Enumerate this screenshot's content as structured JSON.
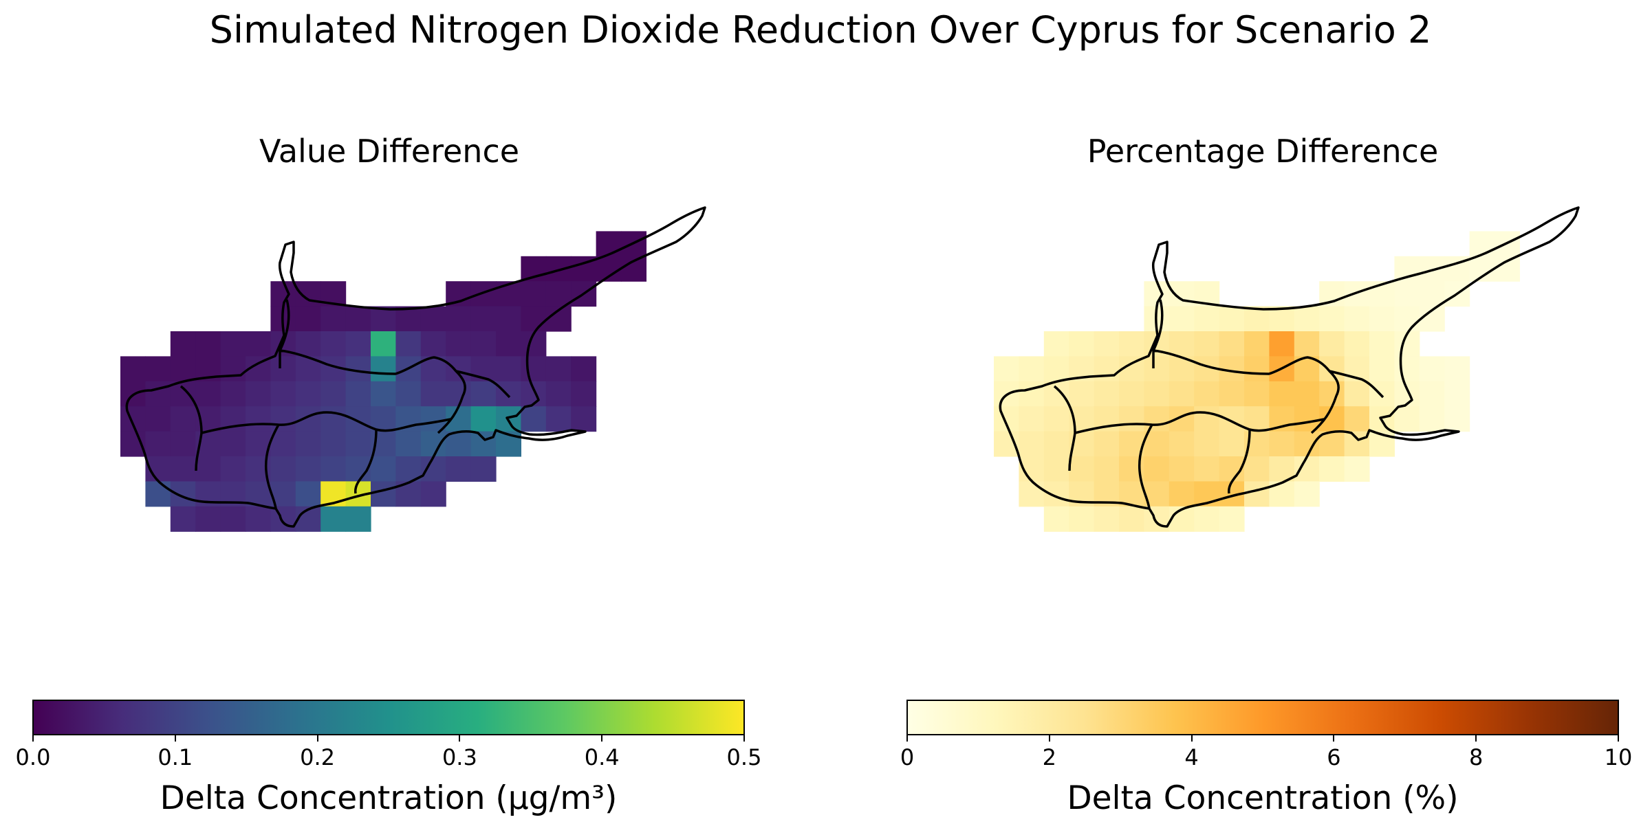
{
  "title": "Simulated Nitrogen Dioxide Reduction Over Cyprus for Scenario 2",
  "panels": [
    {
      "title": "Value Difference",
      "colormap": "viridis",
      "colorbar": {
        "label": "Delta Concentration (µg/m³)",
        "min": 0.0,
        "max": 0.5,
        "ticks": [
          "0.0",
          "0.1",
          "0.2",
          "0.3",
          "0.4",
          "0.5"
        ]
      },
      "stops": [
        "#440154",
        "#472d7b",
        "#3b528b",
        "#2c728e",
        "#21918c",
        "#28ae80",
        "#5ec962",
        "#addc30",
        "#fde725"
      ]
    },
    {
      "title": "Percentage Difference",
      "colormap": "YlOrBr",
      "colorbar": {
        "label": "Delta Concentration (%)",
        "min": 0,
        "max": 10,
        "ticks": [
          "0",
          "2",
          "4",
          "6",
          "8",
          "10"
        ]
      },
      "stops": [
        "#ffffe5",
        "#fff7bc",
        "#fee391",
        "#fec44f",
        "#fe9929",
        "#ec7014",
        "#cc4c02",
        "#993404",
        "#662506"
      ]
    }
  ],
  "grid_value": [
    [
      null,
      null,
      null,
      null,
      null,
      null,
      null,
      null,
      null,
      null,
      null,
      null,
      null,
      null,
      null,
      null,
      null,
      null,
      null,
      null,
      null,
      null
    ],
    [
      null,
      null,
      null,
      null,
      null,
      null,
      null,
      null,
      null,
      null,
      null,
      null,
      null,
      null,
      null,
      null,
      null,
      null,
      null,
      0.01,
      0.01,
      null
    ],
    [
      null,
      null,
      null,
      null,
      null,
      null,
      null,
      null,
      null,
      null,
      null,
      null,
      null,
      null,
      null,
      null,
      0.01,
      0.01,
      0.01,
      0.01,
      0.01,
      null
    ],
    [
      null,
      null,
      null,
      null,
      null,
      null,
      0.02,
      0.02,
      0.02,
      null,
      null,
      null,
      null,
      0.02,
      0.02,
      0.02,
      0.02,
      0.02,
      0.02,
      null,
      null,
      null
    ],
    [
      null,
      null,
      null,
      null,
      null,
      null,
      0.02,
      0.02,
      0.03,
      0.03,
      0.04,
      0.03,
      0.03,
      0.03,
      0.03,
      0.03,
      0.02,
      0.02,
      null,
      null,
      null,
      null
    ],
    [
      null,
      null,
      0.02,
      0.02,
      0.03,
      0.03,
      0.04,
      0.05,
      0.06,
      0.07,
      0.32,
      0.08,
      0.05,
      0.04,
      0.04,
      0.03,
      0.03,
      null,
      null,
      null,
      null,
      null
    ],
    [
      0.02,
      0.02,
      0.02,
      0.02,
      0.03,
      0.04,
      0.05,
      0.06,
      0.07,
      0.09,
      0.22,
      0.1,
      0.07,
      0.06,
      0.05,
      0.05,
      0.04,
      0.04,
      0.03,
      null,
      null,
      null
    ],
    [
      0.02,
      0.03,
      0.03,
      0.03,
      0.04,
      0.05,
      0.06,
      0.07,
      0.08,
      0.1,
      0.13,
      0.11,
      0.08,
      0.08,
      0.09,
      0.07,
      0.06,
      0.05,
      0.04,
      null,
      null,
      null
    ],
    [
      0.03,
      0.03,
      0.04,
      0.04,
      0.05,
      0.06,
      0.07,
      0.08,
      0.09,
      0.1,
      0.11,
      0.13,
      0.14,
      0.18,
      0.25,
      0.22,
      0.1,
      0.07,
      0.05,
      null,
      null,
      null
    ],
    [
      0.03,
      0.04,
      0.04,
      0.05,
      0.05,
      0.06,
      0.07,
      0.08,
      0.09,
      0.1,
      0.11,
      0.13,
      0.15,
      0.14,
      0.16,
      0.18,
      null,
      null,
      null,
      null,
      null,
      null
    ],
    [
      null,
      0.05,
      0.05,
      0.05,
      0.06,
      0.07,
      0.08,
      0.09,
      0.1,
      0.11,
      0.12,
      0.1,
      0.09,
      0.08,
      0.08,
      null,
      null,
      null,
      null,
      null,
      null,
      null
    ],
    [
      null,
      0.12,
      0.09,
      0.07,
      0.07,
      0.08,
      0.09,
      0.12,
      0.49,
      0.47,
      0.1,
      0.08,
      0.07,
      null,
      null,
      null,
      null,
      null,
      null,
      null,
      null,
      null
    ],
    [
      null,
      null,
      0.06,
      0.05,
      0.05,
      0.06,
      0.07,
      0.08,
      0.22,
      0.22,
      null,
      null,
      null,
      null,
      null,
      null,
      null,
      null,
      null,
      null,
      null,
      null
    ]
  ],
  "grid_pct": [
    [
      null,
      null,
      null,
      null,
      null,
      null,
      null,
      null,
      null,
      null,
      null,
      null,
      null,
      null,
      null,
      null,
      null,
      null,
      null,
      null,
      null,
      null
    ],
    [
      null,
      null,
      null,
      null,
      null,
      null,
      null,
      null,
      null,
      null,
      null,
      null,
      null,
      null,
      null,
      null,
      null,
      null,
      null,
      0.3,
      0.3,
      null
    ],
    [
      null,
      null,
      null,
      null,
      null,
      null,
      null,
      null,
      null,
      null,
      null,
      null,
      null,
      null,
      null,
      null,
      0.4,
      0.4,
      0.4,
      0.3,
      0.3,
      null
    ],
    [
      null,
      null,
      null,
      null,
      null,
      null,
      0.6,
      0.7,
      0.8,
      null,
      null,
      null,
      null,
      0.6,
      0.5,
      0.5,
      0.4,
      0.4,
      0.3,
      null,
      null,
      null
    ],
    [
      null,
      null,
      null,
      null,
      null,
      null,
      0.9,
      1.0,
      1.2,
      1.3,
      1.5,
      1.4,
      1.2,
      1.0,
      0.8,
      0.6,
      0.5,
      0.4,
      null,
      null,
      null,
      null
    ],
    [
      null,
      null,
      1.2,
      1.4,
      1.6,
      1.8,
      2.0,
      2.2,
      2.4,
      2.7,
      3.2,
      4.8,
      3.0,
      2.0,
      1.5,
      1.0,
      0.7,
      null,
      null,
      null,
      null,
      null
    ],
    [
      1.0,
      1.2,
      1.4,
      1.6,
      1.8,
      2.0,
      2.2,
      2.4,
      2.6,
      2.9,
      3.3,
      4.4,
      3.4,
      2.4,
      1.6,
      1.0,
      0.7,
      0.5,
      0.4,
      null,
      null,
      null
    ],
    [
      1.2,
      1.4,
      1.6,
      1.8,
      2.0,
      2.2,
      2.4,
      2.6,
      2.8,
      3.0,
      3.2,
      3.6,
      3.6,
      3.2,
      2.0,
      1.2,
      0.8,
      0.6,
      0.4,
      null,
      null,
      null
    ],
    [
      1.4,
      1.6,
      1.8,
      2.0,
      2.2,
      2.5,
      2.8,
      3.0,
      2.6,
      2.4,
      2.6,
      3.4,
      3.6,
      3.8,
      3.0,
      1.4,
      0.9,
      0.6,
      0.4,
      null,
      null,
      null
    ],
    [
      1.6,
      1.8,
      2.0,
      2.2,
      2.5,
      2.8,
      3.0,
      2.8,
      2.6,
      2.4,
      2.8,
      3.0,
      3.2,
      3.0,
      2.2,
      1.2,
      null,
      null,
      null,
      null,
      null,
      null
    ],
    [
      null,
      1.8,
      2.0,
      2.4,
      2.6,
      3.0,
      3.2,
      3.0,
      2.8,
      3.0,
      2.6,
      2.0,
      1.6,
      1.2,
      0.8,
      null,
      null,
      null,
      null,
      null,
      null,
      null
    ],
    [
      null,
      1.6,
      1.8,
      2.2,
      2.6,
      2.8,
      3.0,
      3.4,
      3.6,
      3.6,
      2.0,
      1.2,
      0.8,
      null,
      null,
      null,
      null,
      null,
      null,
      null,
      null,
      null
    ],
    [
      null,
      null,
      1.2,
      1.4,
      1.6,
      1.8,
      1.6,
      1.4,
      1.2,
      1.0,
      null,
      null,
      null,
      null,
      null,
      null,
      null,
      null,
      null,
      null,
      null,
      null
    ]
  ]
}
